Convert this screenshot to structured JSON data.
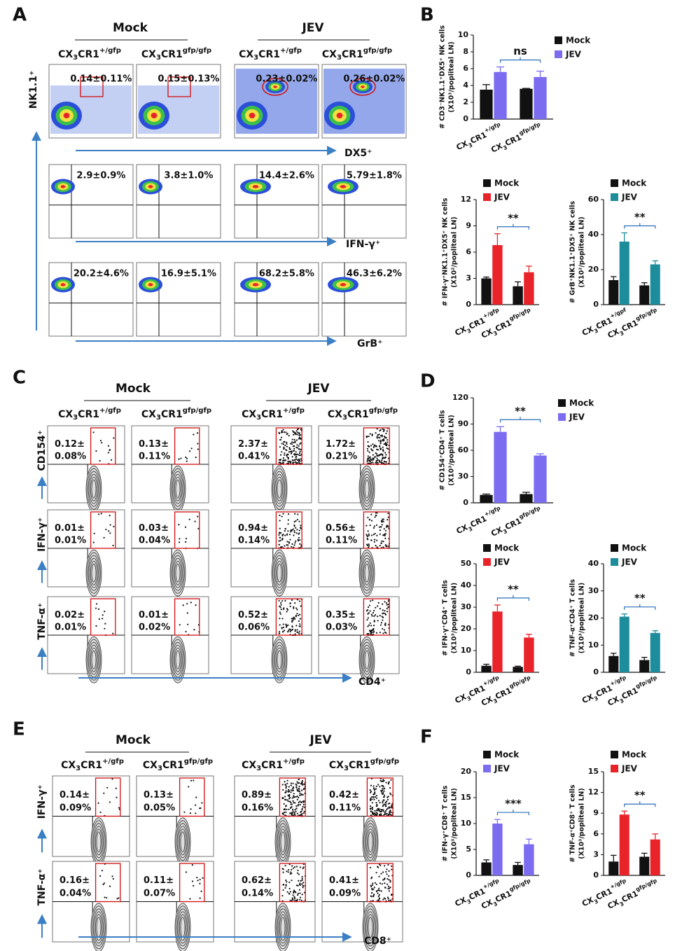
{
  "figure": {
    "panel_a": {
      "label": "A",
      "groups": [
        "Mock",
        "JEV"
      ],
      "genotypes": [
        "CX3CR1+/gfp",
        "CX3CR1gfp/gfp",
        "CX3CR1+/gfp",
        "CX3CR1gfp/gfp"
      ],
      "y_axis": "NK1.1⁺",
      "x_axes": [
        "DX5⁺",
        "IFN-γ⁺",
        "GrB⁺"
      ],
      "rows": [
        [
          "0.14±0.11%",
          "0.15±0.13%",
          "0.23±0.02%",
          "0.26±0.02%"
        ],
        [
          "2.9±0.9%",
          "3.8±1.0%",
          "14.4±2.6%",
          "5.79±1.8%"
        ],
        [
          "20.2±4.6%",
          "16.9±5.1%",
          "68.2±5.8%",
          "46.3±6.2%"
        ]
      ]
    },
    "panel_c": {
      "label": "C",
      "groups": [
        "Mock",
        "JEV"
      ],
      "genotypes": [
        "CX3CR1+/gfp",
        "CX3CR1gfp/gfp",
        "CX3CR1+/gfp",
        "CX3CR1gfp/gfp"
      ],
      "y_axes": [
        "CD154⁺",
        "IFN-γ⁺",
        "TNF-α⁺"
      ],
      "x_axis": "CD4⁺",
      "rows": [
        [
          [
            "0.12±",
            "0.08%"
          ],
          [
            "0.13±",
            "0.11%"
          ],
          [
            "2.37±",
            "0.41%"
          ],
          [
            "1.72±",
            "0.21%"
          ]
        ],
        [
          [
            "0.01±",
            "0.01%"
          ],
          [
            "0.03±",
            "0.04%"
          ],
          [
            "0.94±",
            "0.14%"
          ],
          [
            "0.56±",
            "0.11%"
          ]
        ],
        [
          [
            "0.02±",
            "0.01%"
          ],
          [
            "0.01±",
            "0.02%"
          ],
          [
            "0.52±",
            "0.06%"
          ],
          [
            "0.35±",
            "0.03%"
          ]
        ]
      ]
    },
    "panel_e": {
      "label": "E",
      "groups": [
        "Mock",
        "JEV"
      ],
      "genotypes": [
        "CX3CR1+/gfp",
        "CX3CR1gfp/gfp",
        "CX3CR1+/gfp",
        "CX3CR1gfp/gfp"
      ],
      "y_axes": [
        "IFN-γ⁺",
        "TNF-α⁺"
      ],
      "x_axis": "CD8⁺",
      "rows": [
        [
          [
            "0.14±",
            "0.09%"
          ],
          [
            "0.13±",
            "0.05%"
          ],
          [
            "0.89±",
            "0.16%"
          ],
          [
            "0.42±",
            "0.11%"
          ]
        ],
        [
          [
            "0.16±",
            "0.04%"
          ],
          [
            "0.11±",
            "0.07%"
          ],
          [
            "0.62±",
            "0.14%"
          ],
          [
            "0.41±",
            "0.09%"
          ]
        ]
      ]
    },
    "panel_labels": {
      "b": "B",
      "d": "D",
      "f": "F"
    }
  },
  "chart_data": [
    {
      "type": "bar",
      "ylabel": [
        "# CD3⁻NK1.1⁺DX5⁺ NK cells",
        "(X10³/popliteal LN)"
      ],
      "categories": [
        "CX3CR1+/gfp",
        "CX3CR1gfp/gfp"
      ],
      "series": [
        {
          "name": "Mock",
          "color": "#111111",
          "values": [
            3.5,
            3.6
          ],
          "errors": [
            0.6,
            0.05
          ]
        },
        {
          "name": "JEV",
          "color": "#7b6cf0",
          "values": [
            5.6,
            5.0
          ],
          "errors": [
            0.6,
            0.7
          ]
        }
      ],
      "ylim": [
        0,
        10
      ],
      "yticks": [
        0,
        2,
        4,
        6,
        8,
        10
      ],
      "annotation": "ns"
    },
    {
      "type": "bar",
      "ylabel": [
        "# IFN-γ⁺NK1.1⁺DX5⁺ NK cells",
        "(X10²/popliteal LN)"
      ],
      "categories": [
        "CX3CR1+/gfp",
        "CX3CR1gfp/gfp"
      ],
      "series": [
        {
          "name": "Mock",
          "color": "#111111",
          "values": [
            3.0,
            2.1
          ],
          "errors": [
            0.15,
            0.5
          ]
        },
        {
          "name": "JEV",
          "color": "#e8232a",
          "values": [
            6.8,
            3.7
          ],
          "errors": [
            1.3,
            0.7
          ]
        }
      ],
      "ylim": [
        0,
        12
      ],
      "yticks": [
        0,
        3,
        6,
        9,
        12
      ],
      "annotation": "**"
    },
    {
      "type": "bar",
      "ylabel": [
        "# GrB⁺NK1.1⁺DX5⁺ NK cells",
        "(X10²/popliteal LN)"
      ],
      "categories": [
        "CX3CR1+/gpf",
        "CX3CR1gfp/gfp"
      ],
      "series": [
        {
          "name": "Mock",
          "color": "#111111",
          "values": [
            14,
            11
          ],
          "errors": [
            2,
            1.5
          ]
        },
        {
          "name": "JEV",
          "color": "#1d8c9b",
          "values": [
            36,
            23
          ],
          "errors": [
            5,
            2
          ]
        }
      ],
      "ylim": [
        0,
        60
      ],
      "yticks": [
        0,
        20,
        40,
        60
      ],
      "annotation": "**"
    },
    {
      "type": "bar",
      "ylabel": [
        "# CD154⁺CD4⁺ T cells",
        "(X10³/popliteal LN)"
      ],
      "categories": [
        "CX3CR1+/gfp",
        "CX3CR1gfp/gfp"
      ],
      "series": [
        {
          "name": "Mock",
          "color": "#111111",
          "values": [
            9,
            10
          ],
          "errors": [
            1,
            2
          ]
        },
        {
          "name": "JEV",
          "color": "#7b6cf0",
          "values": [
            81,
            54
          ],
          "errors": [
            6,
            2
          ]
        }
      ],
      "ylim": [
        0,
        120
      ],
      "yticks": [
        0,
        30,
        60,
        90,
        120
      ],
      "annotation": "**"
    },
    {
      "type": "bar",
      "ylabel": [
        "# IFN-γ⁺CD4⁺ T cells",
        "(X10³/popliteal LN)"
      ],
      "categories": [
        "CX3CR1+/gfp",
        "CX3CR1gfp/gfp"
      ],
      "series": [
        {
          "name": "Mock",
          "color": "#111111",
          "values": [
            3,
            2.5
          ],
          "errors": [
            0.7,
            0.3
          ]
        },
        {
          "name": "JEV",
          "color": "#e8232a",
          "values": [
            28,
            16
          ],
          "errors": [
            3,
            1.5
          ]
        }
      ],
      "ylim": [
        0,
        50
      ],
      "yticks": [
        0,
        10,
        20,
        30,
        40,
        50
      ],
      "annotation": "**"
    },
    {
      "type": "bar",
      "ylabel": [
        "# TNF-α⁺CD4⁺ T cells",
        "(X10³/popliteal LN)"
      ],
      "categories": [
        "CX3CR1+/gfp",
        "CX3CR1gfp/gfp"
      ],
      "series": [
        {
          "name": "Mock",
          "color": "#111111",
          "values": [
            6,
            4.5
          ],
          "errors": [
            1,
            1
          ]
        },
        {
          "name": "JEV",
          "color": "#1d8c9b",
          "values": [
            20.5,
            14.5
          ],
          "errors": [
            1,
            0.8
          ]
        }
      ],
      "ylim": [
        0,
        40
      ],
      "yticks": [
        0,
        10,
        20,
        30,
        40
      ],
      "annotation": "**"
    },
    {
      "type": "bar",
      "ylabel": [
        "# IFN-γ⁺CD8⁺ T cells",
        "(X10³/popliteal LN)"
      ],
      "categories": [
        "CX3CR1+/gfp",
        "CX3CR1gfp/gfp"
      ],
      "series": [
        {
          "name": "Mock",
          "color": "#111111",
          "values": [
            2.5,
            2
          ],
          "errors": [
            0.5,
            0.5
          ]
        },
        {
          "name": "JEV",
          "color": "#7b6cf0",
          "values": [
            10,
            6
          ],
          "errors": [
            0.8,
            1
          ]
        }
      ],
      "ylim": [
        0,
        20
      ],
      "yticks": [
        0,
        5,
        10,
        15,
        20
      ],
      "annotation": "***"
    },
    {
      "type": "bar",
      "ylabel": [
        "# TNF-α⁺CD8⁺ T cells",
        "(X10³/popliteal LN)"
      ],
      "categories": [
        "CX3CR1+/gfp",
        "CX3CR1gfp/gfp"
      ],
      "series": [
        {
          "name": "Mock",
          "color": "#111111",
          "values": [
            2,
            2.7
          ],
          "errors": [
            0.9,
            0.5
          ]
        },
        {
          "name": "JEV",
          "color": "#e8232a",
          "values": [
            8.8,
            5.2
          ],
          "errors": [
            0.5,
            0.8
          ]
        }
      ],
      "ylim": [
        0,
        15
      ],
      "yticks": [
        0,
        3,
        6,
        9,
        12,
        15
      ],
      "annotation": "**"
    }
  ]
}
